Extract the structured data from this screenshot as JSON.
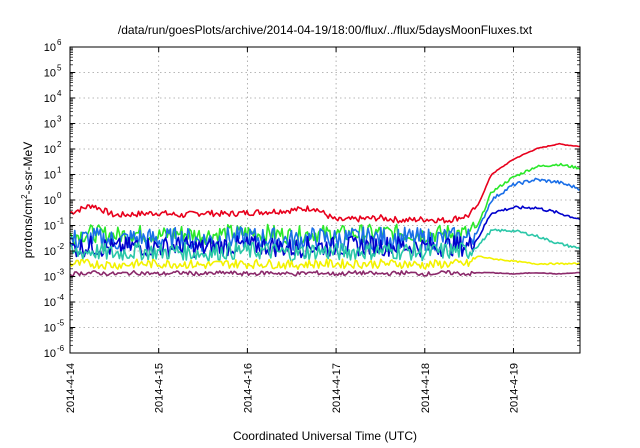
{
  "chart_data": {
    "type": "line",
    "title": "/data/run/goesPlots/archive/2014-04-19/18:00/flux/../flux/5daysMoonFluxes.txt",
    "xlabel": "Coordinated Universal Time (UTC)",
    "ylabel": {
      "pre": "protons/cm",
      "sup": "2",
      "post": "-s-sr-MeV"
    },
    "yscale": "log",
    "ylim": [
      1e-06,
      1000000.0
    ],
    "xlim": [
      "2014-04-14",
      "2014-04-19T18:00"
    ],
    "x_ticks": [
      "2014-4-14",
      "2014-4-15",
      "2014-4-16",
      "2014-4-17",
      "2014-4-18",
      "2014-4-19"
    ],
    "y_ticks": [
      {
        "base": "10",
        "exp": "-6"
      },
      {
        "base": "10",
        "exp": "-5"
      },
      {
        "base": "10",
        "exp": "-4"
      },
      {
        "base": "10",
        "exp": "-3"
      },
      {
        "base": "10",
        "exp": "-2"
      },
      {
        "base": "10",
        "exp": "-1"
      },
      {
        "base": "10",
        "exp": "0"
      },
      {
        "base": "10",
        "exp": "1"
      },
      {
        "base": "10",
        "exp": "2"
      },
      {
        "base": "10",
        "exp": "3"
      },
      {
        "base": "10",
        "exp": "4"
      },
      {
        "base": "10",
        "exp": "5"
      },
      {
        "base": "10",
        "exp": "6"
      }
    ],
    "grid": true,
    "x_values_days_after_2014_04_14": [
      0,
      0.25,
      0.5,
      0.75,
      1.0,
      1.25,
      1.5,
      1.75,
      2.0,
      2.25,
      2.5,
      2.75,
      3.0,
      3.25,
      3.5,
      3.75,
      4.0,
      4.25,
      4.5,
      4.6,
      4.75,
      5.0,
      5.25,
      5.5,
      5.75
    ],
    "series": [
      {
        "color": "#e8001c",
        "log10_values": [
          -0.5,
          -0.2,
          -0.6,
          -0.55,
          -0.5,
          -0.6,
          -0.5,
          -0.55,
          -0.5,
          -0.45,
          -0.4,
          -0.3,
          -0.8,
          -0.75,
          -0.7,
          -0.8,
          -0.75,
          -0.8,
          -0.6,
          -0.2,
          1.0,
          1.6,
          2.0,
          2.2,
          2.1
        ]
      },
      {
        "color": "#2ae82a",
        "log10_values": [
          -1.4,
          -1.3,
          -1.4,
          -1.3,
          -1.4,
          -1.3,
          -1.4,
          -1.3,
          -1.3,
          -1.3,
          -1.4,
          -1.3,
          -1.35,
          -1.3,
          -1.3,
          -1.3,
          -1.35,
          -1.3,
          -1.3,
          -1.0,
          0.3,
          0.9,
          1.3,
          1.4,
          1.25
        ]
      },
      {
        "color": "#1a6fe8",
        "log10_values": [
          -1.6,
          -1.5,
          -1.6,
          -1.5,
          -1.55,
          -1.5,
          -1.6,
          -1.5,
          -1.5,
          -1.5,
          -1.6,
          -1.5,
          -1.55,
          -1.5,
          -1.5,
          -1.5,
          -1.55,
          -1.5,
          -1.5,
          -1.2,
          0.0,
          0.6,
          0.8,
          0.7,
          0.45
        ]
      },
      {
        "color": "#0000cc",
        "log10_values": [
          -1.9,
          -1.8,
          -1.9,
          -1.8,
          -1.85,
          -1.8,
          -1.9,
          -1.8,
          -1.8,
          -1.8,
          -1.9,
          -1.8,
          -1.85,
          -1.8,
          -1.8,
          -1.8,
          -1.85,
          -1.8,
          -1.8,
          -1.5,
          -0.5,
          -0.3,
          -0.3,
          -0.5,
          -0.75
        ]
      },
      {
        "color": "#2bc7a8",
        "log10_values": [
          -2.1,
          -2.0,
          -2.1,
          -2.0,
          -2.05,
          -2.0,
          -2.1,
          -2.0,
          -2.0,
          -2.0,
          -2.1,
          -2.0,
          -2.05,
          -2.0,
          -2.0,
          -2.0,
          -2.05,
          -2.0,
          -2.0,
          -1.8,
          -1.2,
          -1.2,
          -1.4,
          -1.7,
          -1.9
        ]
      },
      {
        "color": "#f2f200",
        "log10_values": [
          -2.5,
          -2.5,
          -2.55,
          -2.5,
          -2.5,
          -2.5,
          -2.55,
          -2.5,
          -2.5,
          -2.5,
          -2.55,
          -2.5,
          -2.5,
          -2.5,
          -2.5,
          -2.5,
          -2.55,
          -2.5,
          -2.5,
          -2.2,
          -2.3,
          -2.4,
          -2.5,
          -2.5,
          -2.5
        ]
      },
      {
        "color": "#8b2a6b",
        "log10_values": [
          -2.9,
          -2.85,
          -2.9,
          -2.85,
          -2.9,
          -2.85,
          -2.9,
          -2.85,
          -2.9,
          -2.85,
          -2.9,
          -2.85,
          -2.9,
          -2.85,
          -2.9,
          -2.85,
          -2.9,
          -2.85,
          -2.9,
          -2.85,
          -2.85,
          -2.9,
          -2.85,
          -2.9,
          -2.85
        ]
      }
    ]
  }
}
